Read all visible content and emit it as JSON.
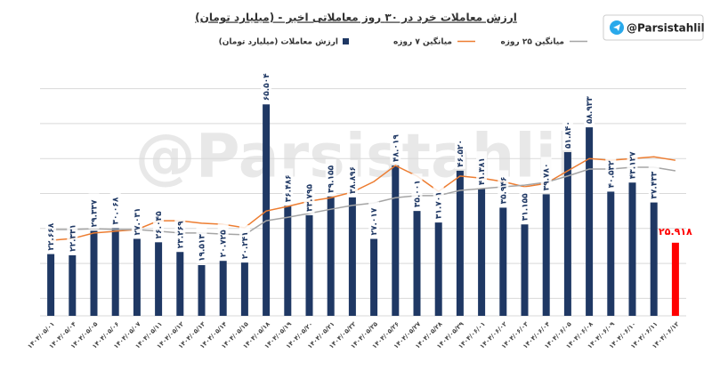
{
  "chart_data": {
    "type": "bar",
    "title": "ارزش معاملات خرد در ۳۰ روز معاملاتی اخیر - (میلیارد تومان)",
    "badge": "@Parsistahlil",
    "watermark": "@Parsistahlil",
    "categories": [
      "۱۴۰۴/۰۵/۰۱",
      "۱۴۰۴/۰۵/۰۴",
      "۱۴۰۴/۰۵/۰۵",
      "۱۴۰۴/۰۵/۰۶",
      "۱۴۰۴/۰۵/۰۷",
      "۱۴۰۴/۰۵/۱۱",
      "۱۴۰۴/۰۵/۱۲",
      "۱۴۰۴/۰۵/۱۳",
      "۱۴۰۴/۰۵/۱۴",
      "۱۴۰۴/۰۵/۱۵",
      "۱۴۰۴/۰۵/۱۸",
      "۱۴۰۴/۰۵/۱۹",
      "۱۴۰۴/۰۵/۲۰",
      "۱۴۰۴/۰۵/۲۱",
      "۱۴۰۴/۰۵/۲۲",
      "۱۴۰۴/۰۵/۲۵",
      "۱۴۰۴/۰۵/۲۶",
      "۱۴۰۴/۰۵/۲۷",
      "۱۴۰۴/۰۵/۲۸",
      "۱۴۰۴/۰۵/۲۹",
      "۱۴۰۴/۰۶/۰۱",
      "۱۴۰۴/۰۶/۰۲",
      "۱۴۰۴/۰۶/۰۳",
      "۱۴۰۴/۰۶/۰۴",
      "۱۴۰۴/۰۶/۰۵",
      "۱۴۰۴/۰۶/۰۸",
      "۱۴۰۴/۰۶/۰۹",
      "۱۴۰۴/۰۶/۱۰",
      "۱۴۰۴/۰۶/۱۱",
      "۱۴۰۴/۰۶/۱۲"
    ],
    "series": [
      {
        "name": "ارزش معاملات (میلیارد تومان)",
        "kind": "bar",
        "color": "#1f3864",
        "bar_colors": [
          "#1f3864",
          "#1f3864",
          "#1f3864",
          "#1f3864",
          "#1f3864",
          "#1f3864",
          "#1f3864",
          "#1f3864",
          "#1f3864",
          "#1f3864",
          "#1f3864",
          "#1f3864",
          "#1f3864",
          "#1f3864",
          "#1f3864",
          "#1f3864",
          "#1f3864",
          "#1f3864",
          "#1f3864",
          "#1f3864",
          "#1f3864",
          "#1f3864",
          "#1f3864",
          "#1f3864",
          "#1f3864",
          "#1f3864",
          "#1f3864",
          "#1f3864",
          "#1f3864",
          "#ff0000"
        ],
        "values": [
          22.668,
          22.331,
          29.337,
          30.068,
          27.031,
          26.045,
          23.269,
          19.513,
          20.725,
          20.241,
          65.504,
          36.486,
          33.795,
          39.155,
          38.896,
          27.017,
          48.019,
          35.001,
          31.701,
          46.52,
          41.381,
          35.946,
          31.155,
          39.78,
          51.84,
          58.933,
          40.532,
          43.127,
          37.433,
          25.918
        ],
        "value_labels": [
          "۲۲.۶۶۸",
          "۲۲.۳۳۱",
          "۲۹.۳۳۷",
          "۳۰.۰۶۸",
          "۲۷.۰۳۱",
          "۲۶.۰۴۵",
          "۲۳.۲۶۹",
          "۱۹.۵۱۳",
          "۲۰.۷۲۵",
          "۲۰.۲۴۱",
          "۶۵.۵۰۴",
          "۳۶.۴۸۶",
          "۳۳.۷۹۵",
          "۳۹.۱۵۵",
          "۳۸.۸۹۶",
          "۲۷.۰۱۷",
          "۴۸.۰۱۹",
          "۳۵.۰۰۱",
          "۳۱.۷۰۱",
          "۴۶.۵۲۰",
          "۴۱.۳۸۱",
          "۳۵.۹۴۶",
          "۳۱.۱۵۵",
          "۳۹.۷۸۰",
          "۵۱.۸۴۰",
          "۵۸.۹۳۳",
          "۴۰.۵۳۲",
          "۴۳.۱۲۷",
          "۳۷.۴۳۳",
          "۲۵.۹۱۸"
        ]
      },
      {
        "name": "میانگین ۷ روزه",
        "kind": "line",
        "color": "#ed7d31",
        "values": [
          26.6,
          27.1,
          28.7,
          29.2,
          29.7,
          32.2,
          32.2,
          31.5,
          31.2,
          30.2,
          35.0,
          36.3,
          37.8,
          38.8,
          40.4,
          43.4,
          48.0,
          45.0,
          40.6,
          45.0,
          44.4,
          43.4,
          41.9,
          42.9,
          46.5,
          50.0,
          49.5,
          50.0,
          50.5,
          49.5
        ]
      },
      {
        "name": "میانگین ۲۵ روزه",
        "kind": "line",
        "color": "#a5a5a5",
        "values": [
          29.7,
          29.7,
          29.9,
          29.7,
          29.7,
          29.2,
          28.7,
          28.7,
          28.4,
          28.2,
          32.2,
          33.2,
          34.3,
          35.5,
          36.6,
          37.3,
          38.8,
          39.4,
          39.4,
          40.9,
          41.4,
          41.9,
          42.4,
          43.2,
          45.0,
          47.0,
          47.0,
          47.5,
          47.5,
          46.5
        ]
      }
    ],
    "ylim": [
      5,
      75
    ],
    "yticks": [
      10,
      20,
      30,
      40,
      50,
      60,
      70
    ],
    "grid": true
  }
}
